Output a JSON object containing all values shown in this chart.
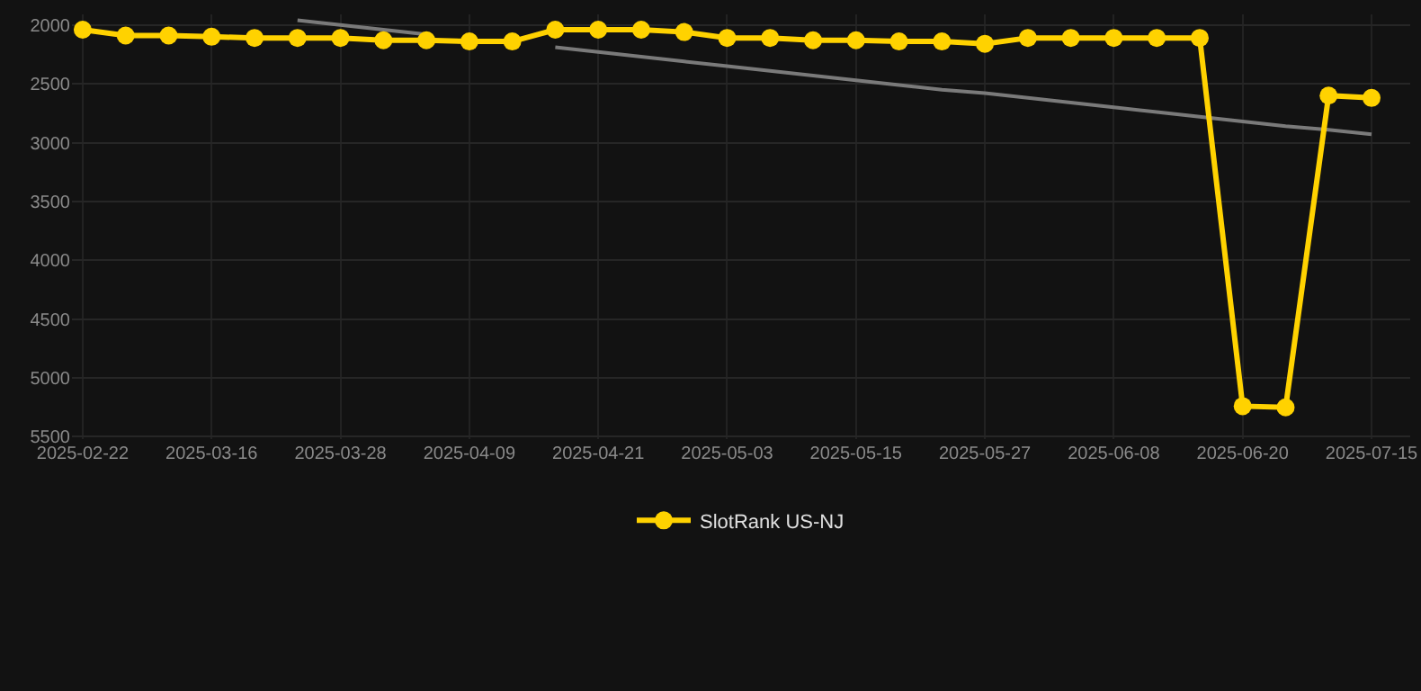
{
  "chart_data": {
    "type": "line",
    "categories": [
      "2025-02-22",
      null,
      null,
      "2025-03-16",
      null,
      null,
      "2025-03-28",
      null,
      null,
      "2025-04-09",
      null,
      null,
      "2025-04-21",
      null,
      null,
      "2025-05-03",
      null,
      null,
      "2025-05-15",
      null,
      null,
      "2025-05-27",
      null,
      null,
      "2025-06-08",
      null,
      null,
      "2025-06-20",
      null,
      null,
      "2025-07-15"
    ],
    "series": [
      {
        "name": "SlotRank US-NJ",
        "color": "#ffd200",
        "marker": "circle",
        "values": [
          2040,
          2090,
          2090,
          2100,
          2110,
          2110,
          2110,
          2130,
          2130,
          2140,
          2140,
          2040,
          2040,
          2040,
          2060,
          2110,
          2110,
          2130,
          2130,
          2140,
          2140,
          2160,
          2110,
          2110,
          2110,
          2110,
          2110,
          5240,
          5250,
          2600,
          2620
        ]
      },
      {
        "type": "line",
        "color": "#7a7a7a",
        "marker": "none",
        "values": [
          null,
          null,
          null,
          null,
          null,
          1960,
          2000,
          2040,
          2080,
          null,
          null,
          2190,
          2230,
          2270,
          2310,
          2350,
          2390,
          2430,
          2470,
          2510,
          2550,
          2580,
          2620,
          2660,
          2700,
          2740,
          2780,
          2820,
          2860,
          2890,
          2930
        ]
      }
    ],
    "ylim": [
      5520,
      1910
    ],
    "yticks": [
      2000,
      2500,
      3000,
      3500,
      4000,
      4500,
      5000,
      5500
    ],
    "grid": true,
    "legend": "bottom"
  }
}
